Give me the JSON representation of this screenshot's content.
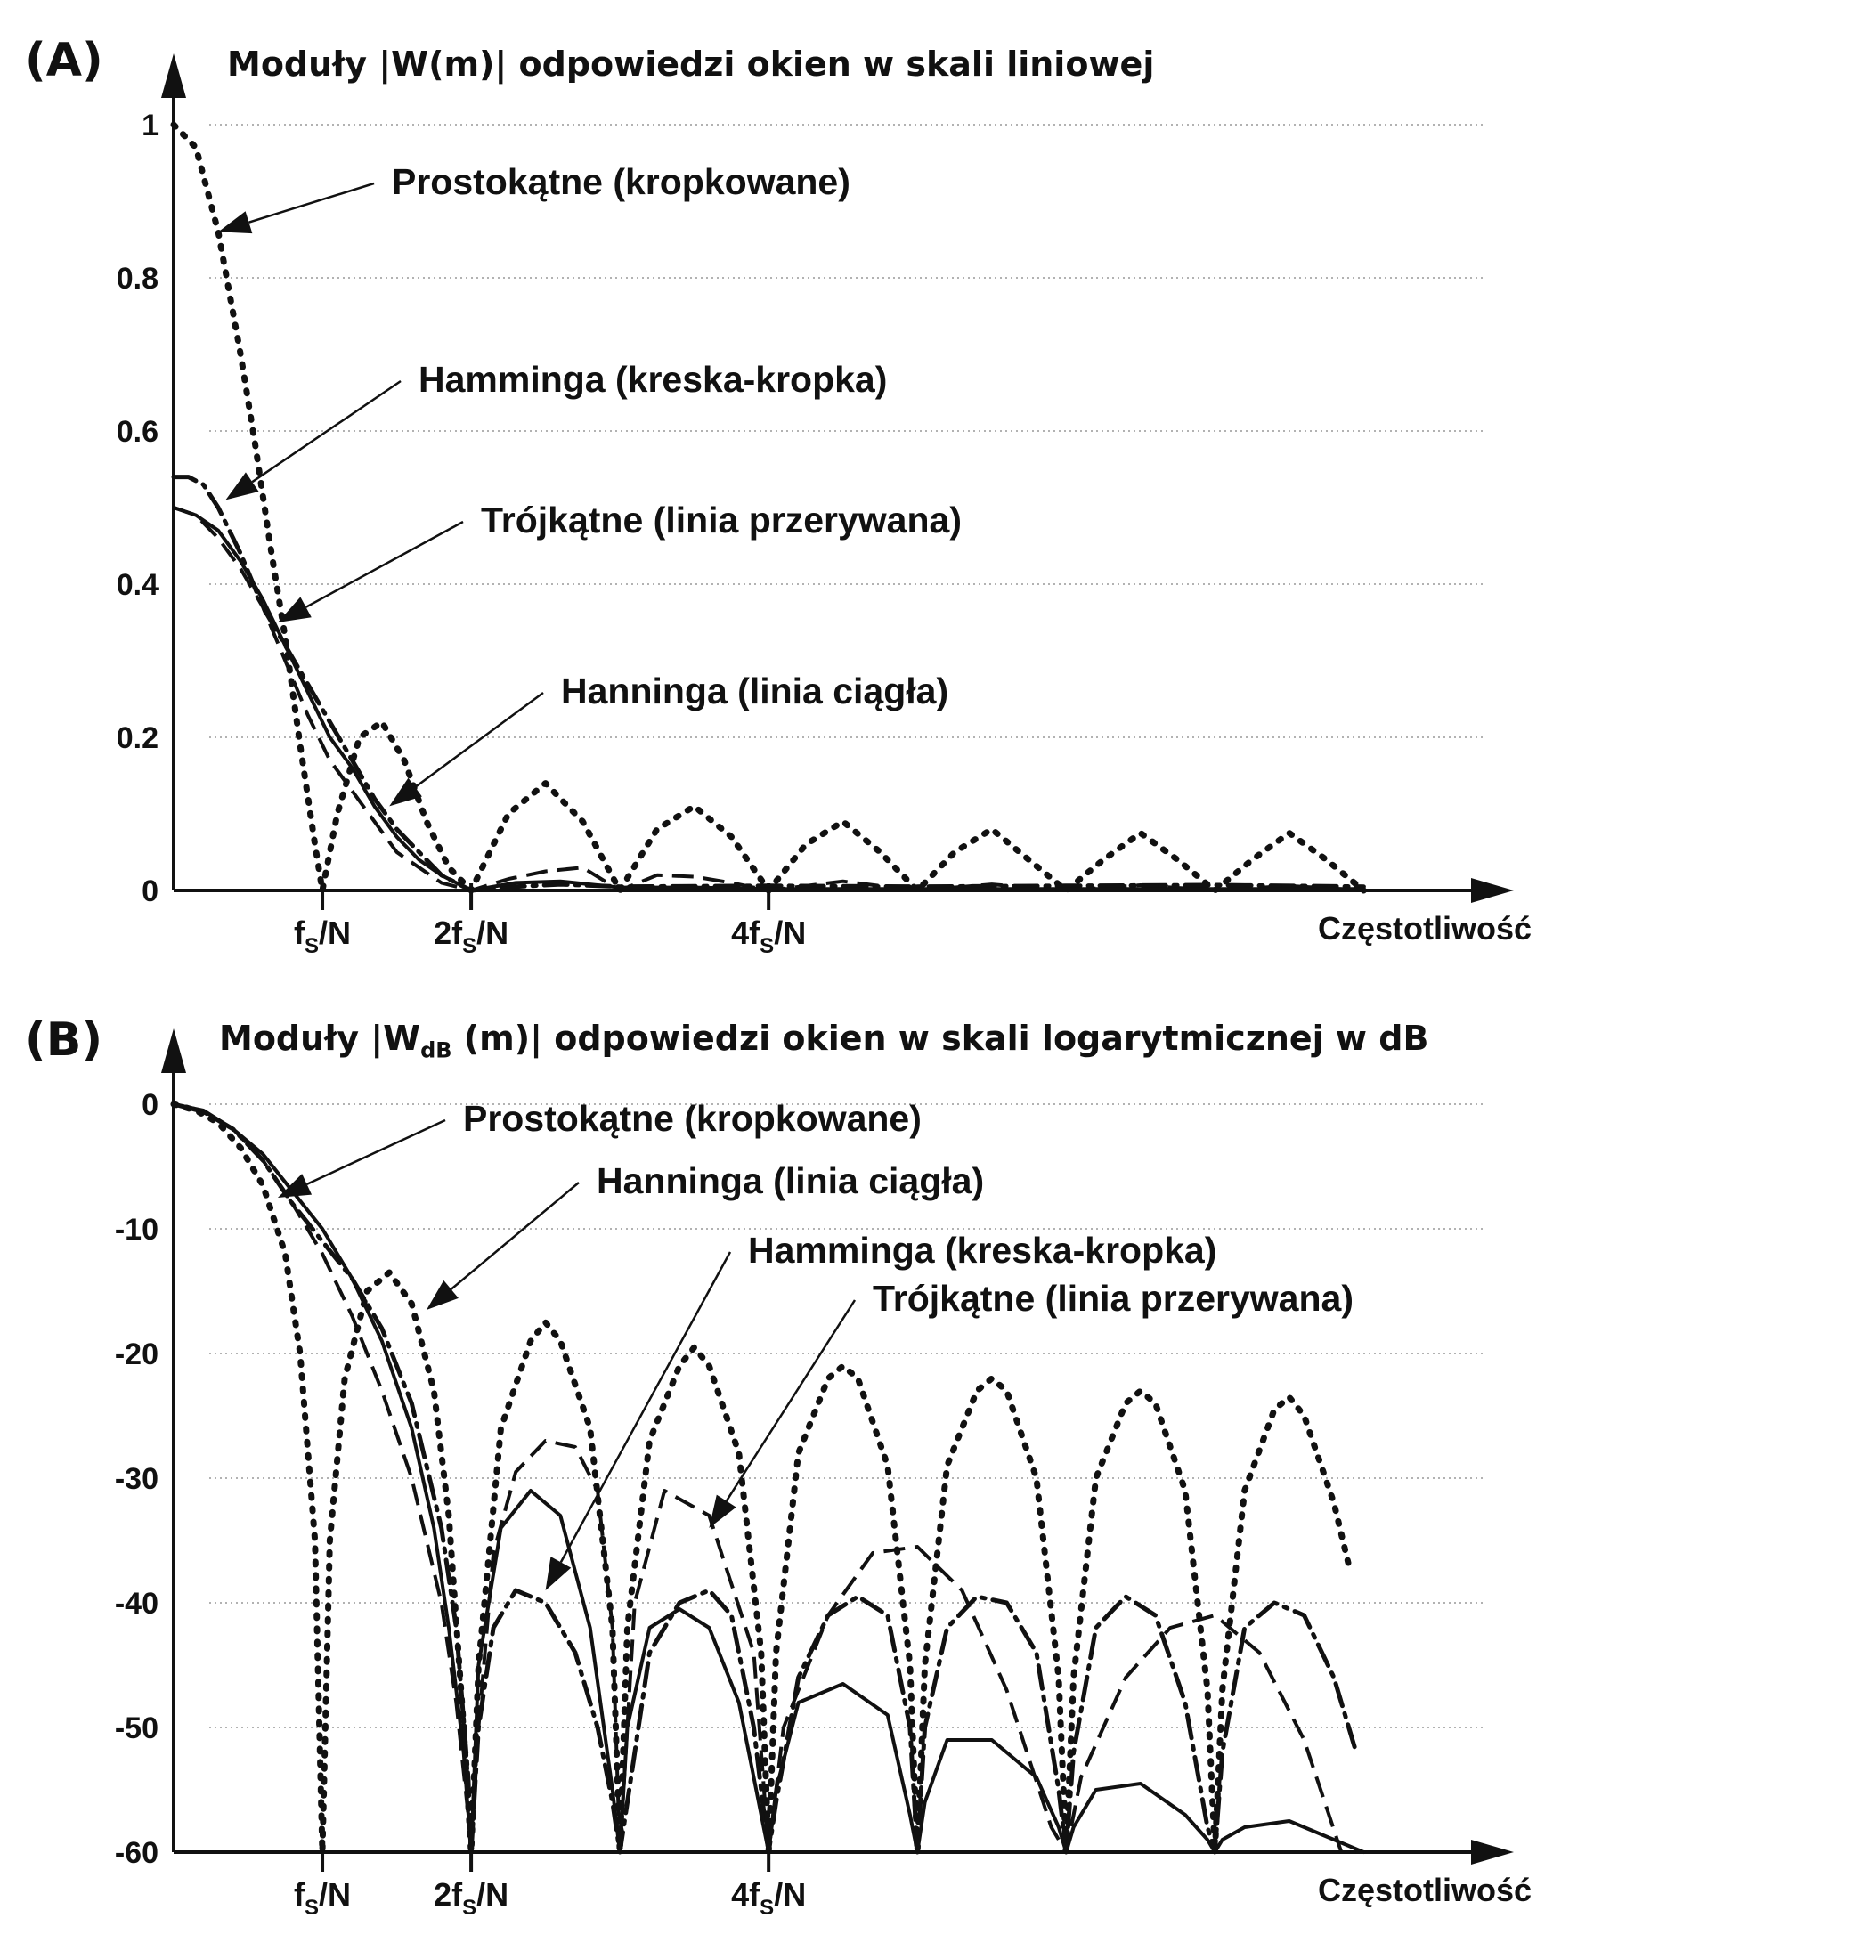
{
  "chart_data": [
    {
      "type": "line",
      "panel_label": "(A)",
      "title": "Moduły |W(m)| odpowiedzi okien w skali liniowej",
      "xlabel": "Częstotliwość",
      "x_unit": "fs/N",
      "x_ticks": [
        {
          "x": 1,
          "label": "f",
          "sub": "S",
          "suffix": "/N"
        },
        {
          "x": 2,
          "label": "2f",
          "sub": "S",
          "suffix": "/N"
        },
        {
          "x": 4,
          "label": "4f",
          "sub": "S",
          "suffix": "/N"
        }
      ],
      "y_ticks": [
        "0",
        "0.2",
        "0.4",
        "0.6",
        "0.8",
        "1"
      ],
      "xlim": [
        0,
        8.8
      ],
      "ylim": [
        0,
        1
      ],
      "grid": true,
      "series": [
        {
          "name": "Prostokątne (kropkowane)",
          "style": "dotted",
          "x": [
            0,
            0.15,
            0.3,
            0.45,
            0.55,
            0.65,
            0.75,
            0.85,
            0.95,
            1.0,
            1.1,
            1.25,
            1.4,
            1.55,
            1.7,
            1.85,
            2.0,
            2.25,
            2.5,
            2.75,
            3.0,
            3.25,
            3.5,
            3.75,
            4.0,
            4.25,
            4.5,
            4.75,
            5.0,
            5.25,
            5.5,
            5.75,
            6.0,
            6.25,
            6.5,
            6.75,
            7.0,
            7.25,
            7.5,
            7.75,
            8.0
          ],
          "y": [
            1.0,
            0.97,
            0.86,
            0.7,
            0.58,
            0.45,
            0.33,
            0.19,
            0.06,
            0.0,
            0.1,
            0.2,
            0.22,
            0.17,
            0.09,
            0.03,
            0.0,
            0.1,
            0.14,
            0.09,
            0.0,
            0.08,
            0.11,
            0.07,
            0.0,
            0.06,
            0.09,
            0.05,
            0.0,
            0.05,
            0.08,
            0.04,
            0.0,
            0.04,
            0.075,
            0.04,
            0.0,
            0.04,
            0.075,
            0.04,
            0.0
          ]
        },
        {
          "name": "Hamminga (kreska-kropka)",
          "style": "dashdot",
          "x": [
            0,
            0.1,
            0.2,
            0.3,
            0.45,
            0.6,
            0.75,
            0.9,
            1.05,
            1.2,
            1.35,
            1.5,
            1.65,
            1.8,
            1.9,
            2.0,
            2.3,
            2.6,
            3.0,
            4.0,
            5.0,
            6.0,
            7.0,
            8.0
          ],
          "y": [
            0.54,
            0.54,
            0.53,
            0.5,
            0.44,
            0.37,
            0.32,
            0.27,
            0.22,
            0.17,
            0.12,
            0.08,
            0.05,
            0.02,
            0.01,
            0.0,
            0.005,
            0.008,
            0.005,
            0.006,
            0.005,
            0.006,
            0.007,
            0.005
          ]
        },
        {
          "name": "Trójkątne (linia przerywana)",
          "style": "dashed",
          "x": [
            0,
            0.15,
            0.3,
            0.45,
            0.6,
            0.75,
            0.9,
            1.05,
            1.2,
            1.35,
            1.5,
            1.65,
            1.8,
            1.9,
            2.0,
            2.25,
            2.5,
            2.75,
            3.0,
            3.25,
            3.5,
            3.75,
            4.0,
            4.5,
            5.0,
            5.5,
            6.0,
            6.5,
            7.0,
            7.5,
            8.0
          ],
          "y": [
            0.5,
            0.49,
            0.46,
            0.42,
            0.37,
            0.3,
            0.23,
            0.17,
            0.13,
            0.09,
            0.05,
            0.03,
            0.01,
            0.005,
            0.0,
            0.015,
            0.025,
            0.03,
            0.0,
            0.02,
            0.018,
            0.01,
            0.0,
            0.012,
            0.0,
            0.008,
            0.0,
            0.007,
            0.0,
            0.006,
            0.0
          ]
        },
        {
          "name": "Hanninga (linia ciągła)",
          "style": "solid",
          "x": [
            0,
            0.15,
            0.3,
            0.45,
            0.6,
            0.75,
            0.9,
            1.05,
            1.2,
            1.35,
            1.5,
            1.65,
            1.8,
            1.9,
            2.0,
            2.3,
            2.6,
            3.0,
            3.5,
            4.0,
            5.0,
            6.0,
            7.0,
            8.0
          ],
          "y": [
            0.5,
            0.49,
            0.47,
            0.43,
            0.38,
            0.32,
            0.26,
            0.2,
            0.16,
            0.11,
            0.07,
            0.04,
            0.02,
            0.01,
            0.0,
            0.01,
            0.012,
            0.004,
            0.004,
            0.002,
            0.002,
            0.002,
            0.002,
            0.002
          ]
        }
      ],
      "annotations": [
        {
          "text": "Prostokątne (kropkowane)",
          "point": [
            0.3,
            0.86
          ]
        },
        {
          "text": "Hamminga (kreska-kropka)",
          "point": [
            0.35,
            0.51
          ]
        },
        {
          "text": "Trójkątne (linia przerywana)",
          "point": [
            0.7,
            0.35
          ]
        },
        {
          "text": "Hanninga (linia ciągła)",
          "point": [
            1.45,
            0.11
          ]
        }
      ]
    },
    {
      "type": "line",
      "panel_label": "(B)",
      "title_pre": "Moduły |W",
      "title_sub": "dB",
      "title_post": " (m)| odpowiedzi okien w skali logarytmicznej w dB",
      "xlabel": "Częstotliwość",
      "x_unit": "fs/N",
      "x_ticks": [
        {
          "x": 1,
          "label": "f",
          "sub": "S",
          "suffix": "/N"
        },
        {
          "x": 2,
          "label": "2f",
          "sub": "S",
          "suffix": "/N"
        },
        {
          "x": 4,
          "label": "4f",
          "sub": "S",
          "suffix": "/N"
        }
      ],
      "y_ticks": [
        "0",
        "-10",
        "-20",
        "-30",
        "-40",
        "-50",
        "-60"
      ],
      "xlim": [
        0,
        8.8
      ],
      "ylim": [
        -60,
        0
      ],
      "grid": true,
      "series": [
        {
          "name": "Prostokątne (kropkowane)",
          "style": "dotted",
          "x": [
            0,
            0.15,
            0.3,
            0.45,
            0.6,
            0.75,
            0.85,
            0.95,
            1.0,
            1.05,
            1.15,
            1.3,
            1.45,
            1.6,
            1.75,
            1.85,
            1.95,
            2.0,
            2.05,
            2.2,
            2.4,
            2.5,
            2.6,
            2.8,
            2.95,
            3.0,
            3.05,
            3.2,
            3.4,
            3.5,
            3.6,
            3.8,
            3.95,
            4.0,
            4.05,
            4.2,
            4.4,
            4.5,
            4.6,
            4.8,
            4.95,
            5.0,
            5.05,
            5.2,
            5.4,
            5.5,
            5.6,
            5.8,
            5.95,
            6.0,
            6.05,
            6.2,
            6.4,
            6.5,
            6.6,
            6.8,
            6.95,
            7.0,
            7.05,
            7.2,
            7.4,
            7.5,
            7.6,
            7.8,
            7.9
          ],
          "y": [
            0,
            -0.5,
            -1.5,
            -3.5,
            -6.5,
            -12,
            -20,
            -35,
            -60,
            -35,
            -22,
            -15,
            -13.5,
            -16,
            -23,
            -33,
            -50,
            -60,
            -45,
            -26,
            -19,
            -17.5,
            -19,
            -26,
            -42,
            -60,
            -42,
            -27,
            -21,
            -19.5,
            -21,
            -28,
            -44,
            -60,
            -44,
            -28,
            -22,
            -21,
            -22,
            -29,
            -45,
            -60,
            -45,
            -29,
            -23,
            -22,
            -23,
            -30,
            -46,
            -60,
            -46,
            -30,
            -24,
            -23,
            -24,
            -31,
            -47,
            -60,
            -47,
            -31,
            -24.5,
            -23.5,
            -25,
            -32,
            -37
          ]
        },
        {
          "name": "Hanninga (linia ciągła)",
          "style": "solid",
          "x": [
            0,
            0.2,
            0.4,
            0.6,
            0.8,
            1.0,
            1.2,
            1.4,
            1.6,
            1.75,
            1.85,
            1.95,
            2.0,
            2.05,
            2.2,
            2.4,
            2.6,
            2.8,
            2.95,
            3.0,
            3.05,
            3.2,
            3.4,
            3.6,
            3.8,
            3.95,
            4.0,
            4.05,
            4.2,
            4.5,
            4.8,
            4.95,
            5.0,
            5.05,
            5.2,
            5.5,
            5.8,
            5.95,
            6.0,
            6.05,
            6.2,
            6.5,
            6.8,
            6.95,
            7.0,
            7.05,
            7.2,
            7.5,
            7.8,
            8.0
          ],
          "y": [
            0,
            -0.5,
            -2,
            -4,
            -7,
            -10,
            -14,
            -19,
            -26,
            -34,
            -42,
            -52,
            -60,
            -45,
            -34,
            -31,
            -33,
            -42,
            -55,
            -60,
            -50,
            -42,
            -40.5,
            -42,
            -48,
            -57,
            -60,
            -55,
            -48,
            -46.5,
            -49,
            -57,
            -60,
            -56,
            -51,
            -51,
            -54,
            -58,
            -60,
            -58,
            -55,
            -54.5,
            -57,
            -59,
            -60,
            -59,
            -58,
            -57.5,
            -59,
            -60
          ]
        },
        {
          "name": "Hamminga (kreska-kropka)",
          "style": "dashdot",
          "x": [
            0,
            0.2,
            0.4,
            0.6,
            0.8,
            1.0,
            1.2,
            1.4,
            1.6,
            1.8,
            1.9,
            1.98,
            2.0,
            2.05,
            2.15,
            2.3,
            2.5,
            2.7,
            2.85,
            2.95,
            3.0,
            3.05,
            3.2,
            3.4,
            3.6,
            3.75,
            3.9,
            3.98,
            4.0,
            4.05,
            4.2,
            4.4,
            4.6,
            4.8,
            4.95,
            5.0,
            5.05,
            5.2,
            5.4,
            5.6,
            5.8,
            5.95,
            6.0,
            6.05,
            6.2,
            6.4,
            6.6,
            6.8,
            6.95,
            7.0,
            7.05,
            7.2,
            7.4,
            7.6,
            7.8,
            7.95
          ],
          "y": [
            0,
            -0.6,
            -2,
            -4.5,
            -8,
            -11,
            -14,
            -18,
            -24,
            -34,
            -42,
            -54,
            -60,
            -50,
            -42,
            -39,
            -40,
            -44,
            -50,
            -56,
            -60,
            -56,
            -44,
            -40,
            -39,
            -41,
            -50,
            -58,
            -60,
            -56,
            -46,
            -41,
            -39.5,
            -41,
            -50,
            -60,
            -50,
            -42,
            -39.5,
            -40,
            -44,
            -55,
            -60,
            -52,
            -42,
            -39.5,
            -41,
            -48,
            -58,
            -60,
            -52,
            -42,
            -40,
            -41,
            -46,
            -52
          ]
        },
        {
          "name": "Trójkątne (linia przerywana)",
          "style": "dashed",
          "x": [
            0,
            0.2,
            0.4,
            0.6,
            0.8,
            1.0,
            1.2,
            1.4,
            1.6,
            1.8,
            1.9,
            1.98,
            2.0,
            2.05,
            2.15,
            2.3,
            2.5,
            2.7,
            2.85,
            2.95,
            3.0,
            3.1,
            3.3,
            3.6,
            3.9,
            4.0,
            4.1,
            4.4,
            4.7,
            5.0,
            5.3,
            5.6,
            5.9,
            6.0,
            6.1,
            6.4,
            6.7,
            7.0,
            7.3,
            7.6,
            7.85,
            8.0
          ],
          "y": [
            0,
            -0.5,
            -2,
            -4.5,
            -8,
            -12,
            -17,
            -23,
            -30,
            -40,
            -48,
            -57,
            -60,
            -50,
            -36,
            -29.5,
            -27,
            -27.5,
            -31,
            -42,
            -60,
            -40,
            -31,
            -33,
            -44,
            -60,
            -50,
            -41,
            -36,
            -35.5,
            -39,
            -47,
            -58,
            -60,
            -54,
            -46,
            -42,
            -41,
            -44,
            -51,
            -60,
            -60
          ]
        }
      ],
      "annotations": [
        {
          "text": "Prostokątne (kropkowane)",
          "point": [
            0.7,
            -7.5
          ]
        },
        {
          "text": "Hanninga (linia ciągła)",
          "point": [
            1.7,
            -16.5
          ]
        },
        {
          "text": "Hamminga (kreska-kropka)",
          "point": [
            2.5,
            -39
          ]
        },
        {
          "text": "Trójkątne (linia przerywana)",
          "point": [
            3.6,
            -34
          ]
        }
      ]
    }
  ]
}
